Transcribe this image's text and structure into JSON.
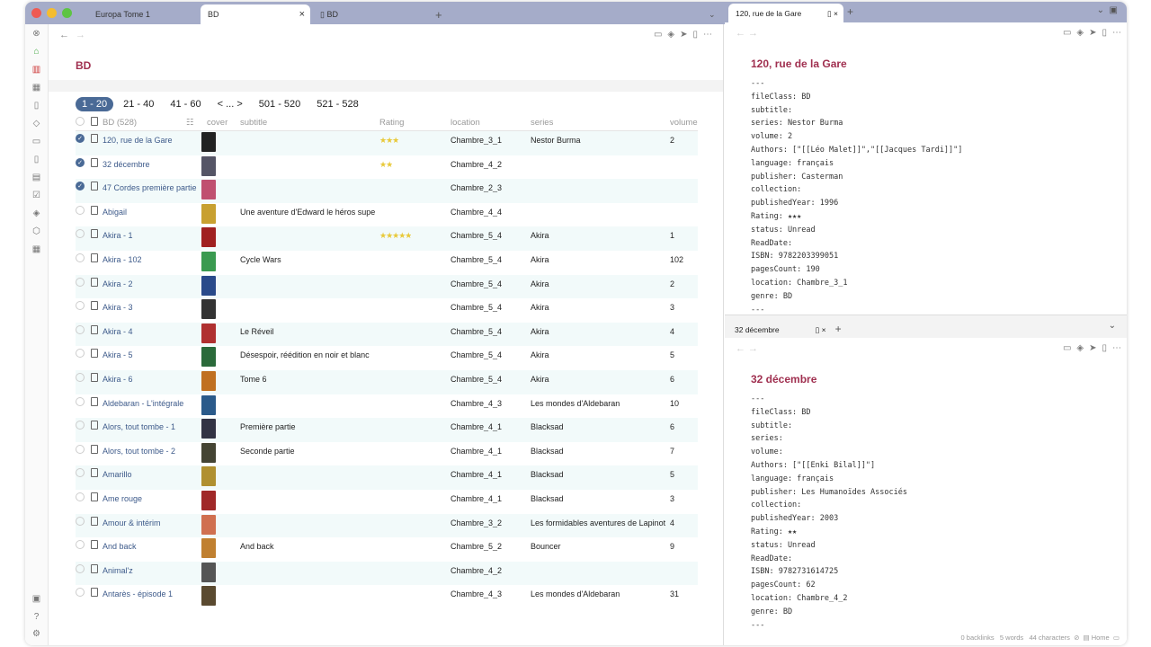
{
  "tabs": [
    {
      "label": "Europa Tome 1"
    },
    {
      "label": "BD"
    },
    {
      "label": "BD"
    }
  ],
  "main": {
    "title": "BD",
    "pager": [
      "1 - 20",
      "21 - 40",
      "41 - 60",
      "< ... >",
      "501 - 520",
      "521 - 528"
    ],
    "columns": {
      "name": "BD (528)",
      "cover": "cover",
      "subtitle": "subtitle",
      "rating": "Rating",
      "location": "location",
      "series": "series",
      "volume": "volume"
    },
    "rows": [
      {
        "t": "120, rue de la Gare",
        "s": "",
        "r": "★★★",
        "l": "Chambre_3_1",
        "se": "Nestor Burma",
        "v": "2",
        "c": true,
        "col": "#222"
      },
      {
        "t": "32 décembre",
        "s": "",
        "r": "★★",
        "l": "Chambre_4_2",
        "se": "",
        "v": "",
        "c": true,
        "col": "#556"
      },
      {
        "t": "47 Cordes première partie",
        "s": "",
        "r": "",
        "l": "Chambre_2_3",
        "se": "",
        "v": "",
        "c": true,
        "col": "#c05070"
      },
      {
        "t": "Abigail",
        "s": "Une aventure d'Edward le héros supe",
        "r": "",
        "l": "Chambre_4_4",
        "se": "",
        "v": "",
        "c": false,
        "col": "#c8a030"
      },
      {
        "t": "Akira - 1",
        "s": "",
        "r": "★★★★★",
        "l": "Chambre_5_4",
        "se": "Akira",
        "v": "1",
        "c": false,
        "col": "#a02020"
      },
      {
        "t": "Akira - 102",
        "s": "Cycle Wars",
        "r": "",
        "l": "Chambre_5_4",
        "se": "Akira",
        "v": "102",
        "c": false,
        "col": "#3a9a50"
      },
      {
        "t": "Akira - 2",
        "s": "",
        "r": "",
        "l": "Chambre_5_4",
        "se": "Akira",
        "v": "2",
        "c": false,
        "col": "#2a4a8a"
      },
      {
        "t": "Akira - 3",
        "s": "",
        "r": "",
        "l": "Chambre_5_4",
        "se": "Akira",
        "v": "3",
        "c": false,
        "col": "#333"
      },
      {
        "t": "Akira - 4",
        "s": "Le Réveil",
        "r": "",
        "l": "Chambre_5_4",
        "se": "Akira",
        "v": "4",
        "c": false,
        "col": "#b03030"
      },
      {
        "t": "Akira - 5",
        "s": "Désespoir, réédition en noir et blanc",
        "r": "",
        "l": "Chambre_5_4",
        "se": "Akira",
        "v": "5",
        "c": false,
        "col": "#2a6a3a"
      },
      {
        "t": "Akira - 6",
        "s": "Tome 6",
        "r": "",
        "l": "Chambre_5_4",
        "se": "Akira",
        "v": "6",
        "c": false,
        "col": "#c07020"
      },
      {
        "t": "Aldebaran - L'intégrale",
        "s": "",
        "r": "",
        "l": "Chambre_4_3",
        "se": "Les mondes d'Aldebaran",
        "v": "10",
        "c": false,
        "col": "#2a5a8a"
      },
      {
        "t": "Alors, tout tombe - 1",
        "s": "Première partie",
        "r": "",
        "l": "Chambre_4_1",
        "se": "Blacksad",
        "v": "6",
        "c": false,
        "col": "#334"
      },
      {
        "t": "Alors, tout tombe - 2",
        "s": "Seconde partie",
        "r": "",
        "l": "Chambre_4_1",
        "se": "Blacksad",
        "v": "7",
        "c": false,
        "col": "#443"
      },
      {
        "t": "Amarillo",
        "s": "",
        "r": "",
        "l": "Chambre_4_1",
        "se": "Blacksad",
        "v": "5",
        "c": false,
        "col": "#b09030"
      },
      {
        "t": "Ame rouge",
        "s": "",
        "r": "",
        "l": "Chambre_4_1",
        "se": "Blacksad",
        "v": "3",
        "c": false,
        "col": "#a02828"
      },
      {
        "t": "Amour & intérim",
        "s": "",
        "r": "",
        "l": "Chambre_3_2",
        "se": "Les formidables aventures de Lapinot",
        "v": "4",
        "c": false,
        "col": "#d07050"
      },
      {
        "t": "And back",
        "s": "And back",
        "r": "",
        "l": "Chambre_5_2",
        "se": "Bouncer",
        "v": "9",
        "c": false,
        "col": "#c08030"
      },
      {
        "t": "Animal'z",
        "s": "",
        "r": "",
        "l": "Chambre_4_2",
        "se": "",
        "v": "",
        "c": false,
        "col": "#555"
      },
      {
        "t": "Antarès - épisode 1",
        "s": "",
        "r": "",
        "l": "Chambre_4_3",
        "se": "Les mondes d'Aldebaran",
        "v": "31",
        "c": false,
        "col": "#5a4a30"
      }
    ]
  },
  "pane1": {
    "tab": "120, rue de la Gare",
    "title": "120, rue de la Gare",
    "lines": [
      "---",
      "fileClass: BD",
      "subtitle:",
      "series: Nestor Burma",
      "volume: 2",
      "Authors: [\"[[Léo Malet]]\",\"[[Jacques Tardi]]\"]",
      "language: français",
      "publisher: Casterman",
      "collection:",
      "publishedYear: 1996",
      "Rating: ★★★",
      "status: Unread",
      "ReadDate:",
      "ISBN: 9782203399051",
      "pagesCount: 190",
      "location: Chambre_3_1",
      "genre: BD",
      "---"
    ]
  },
  "pane2": {
    "tab": "32 décembre",
    "title": "32 décembre",
    "lines": [
      "---",
      "fileClass: BD",
      "subtitle:",
      "series:",
      "volume:",
      "Authors: [\"[[Enki Bilal]]\"]",
      "language: français",
      "publisher: Les Humanoïdes Associés",
      "collection:",
      "publishedYear: 2003",
      "Rating: ★★",
      "status: Unread",
      "ReadDate:",
      "ISBN: 9782731614725",
      "pagesCount: 62",
      "location: Chambre_4_2",
      "genre: BD",
      "---"
    ]
  },
  "statusbar": {
    "backlinks": "0 backlinks",
    "words": "5 words",
    "chars": "44 characters",
    "home": "Home"
  }
}
